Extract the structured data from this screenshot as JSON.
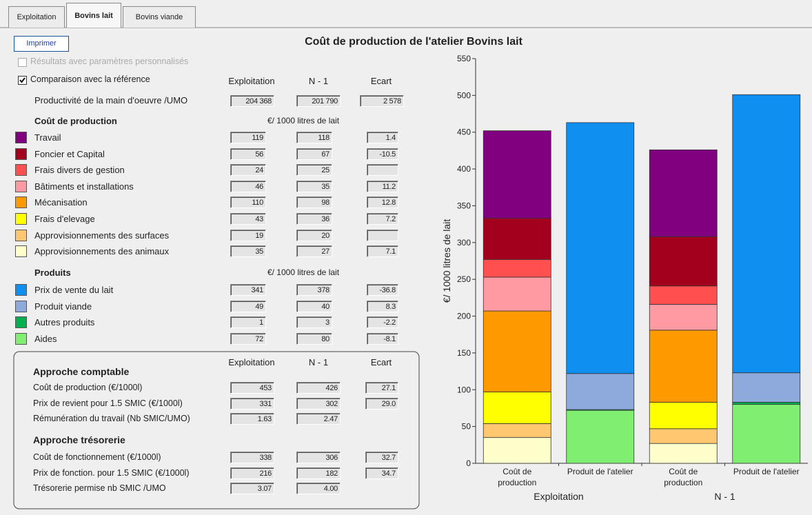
{
  "tabs": [
    "Exploitation",
    "Bovins lait",
    "Bovins viande"
  ],
  "print_button": "Imprimer",
  "options": [
    "Résultats avec paramètres personnalisés",
    "Comparaison avec la référence"
  ],
  "columns": [
    "Exploitation",
    "N - 1",
    "Ecart"
  ],
  "productivity": {
    "label": "Productivité de la main d'oeuvre /UMO",
    "values": [
      "204 368",
      "201 790",
      "2 578"
    ]
  },
  "cost": {
    "title": "Coût de production",
    "rows": [
      {
        "values": [
          "119",
          "118",
          "1.4"
        ]
      },
      {
        "values": [
          "56",
          "67",
          "-10.5"
        ]
      },
      {
        "values": [
          "24",
          "25",
          null
        ]
      },
      {
        "values": [
          "46",
          "35",
          "11.2"
        ]
      },
      {
        "values": [
          "110",
          "98",
          "12.8"
        ]
      },
      {
        "values": [
          "43",
          "36",
          "7.2"
        ]
      },
      {
        "values": [
          "19",
          "20",
          null
        ]
      },
      {
        "values": [
          "35",
          "27",
          "7.1"
        ]
      }
    ]
  },
  "products": {
    "title": "Produits",
    "rows": [
      {
        "values": [
          "341",
          "378",
          "-36.8"
        ]
      },
      {
        "values": [
          "49",
          "40",
          "8.3"
        ]
      },
      {
        "values": [
          "1",
          "3",
          "-2.2"
        ]
      },
      {
        "values": [
          "72",
          "80",
          "-8.1"
        ]
      }
    ]
  },
  "accounting": {
    "title": "Approche comptable",
    "rows": [
      {
        "label": "Coût de production (€/1000l)",
        "values": [
          "453",
          "426",
          "27.1"
        ]
      },
      {
        "label": "Prix de revient pour 1.5 SMIC (€/1000l)",
        "values": [
          "331",
          "302",
          "29.0"
        ]
      },
      {
        "label": "Rémunération du travail (Nb SMIC/UMO)",
        "values": [
          "1.63",
          "2.47"
        ]
      }
    ]
  },
  "treasury": {
    "title": "Approche trésorerie",
    "rows": [
      {
        "label": "Coût de fonctionnement (€/1000l)",
        "values": [
          "338",
          "306",
          "32.7"
        ]
      },
      {
        "label": "Prix de fonction. pour 1.5 SMIC (€/1000l)",
        "values": [
          "216",
          "182",
          "34.7"
        ]
      },
      {
        "label": "Trésorerie permise nb SMIC /UMO",
        "values": [
          "3.07",
          "4.00"
        ]
      }
    ]
  },
  "chart_data": {
    "type": "bar",
    "stacked": true,
    "title": "Coût de production de l'atelier Bovins lait",
    "ylabel": "€/ 1000 litres de lait",
    "categories": [
      "Coût de production",
      "Produit de l'atelier",
      "Coût de production",
      "Produit de l'atelier"
    ],
    "groups": [
      "Exploitation",
      "N - 1"
    ],
    "ylim": [
      0,
      550
    ],
    "yticks": [
      0,
      50,
      100,
      150,
      200,
      250,
      300,
      350,
      400,
      450,
      500,
      550
    ],
    "series": [
      {
        "name": "Travail",
        "color": "#800080",
        "values": [
          119,
          null,
          118,
          null
        ]
      },
      {
        "name": "Foncier et Capital",
        "color": "#a3001e",
        "values": [
          56,
          null,
          67,
          null
        ]
      },
      {
        "name": "Frais divers de gestion",
        "color": "#ff4f4f",
        "values": [
          24,
          null,
          25,
          null
        ]
      },
      {
        "name": "Bâtiments et installations",
        "color": "#ff9aa2",
        "values": [
          46,
          null,
          35,
          null
        ]
      },
      {
        "name": "Mécanisation",
        "color": "#ff9900",
        "values": [
          110,
          null,
          98,
          null
        ]
      },
      {
        "name": "Frais d'elevage",
        "color": "#ffff00",
        "values": [
          43,
          null,
          36,
          null
        ]
      },
      {
        "name": "Approvisionnements des surfaces",
        "color": "#ffc870",
        "values": [
          19,
          null,
          20,
          null
        ]
      },
      {
        "name": "Approvisionnements des animaux",
        "color": "#ffffcc",
        "values": [
          35,
          null,
          27,
          null
        ]
      },
      {
        "name": "Prix de vente du lait",
        "color": "#0f8ff0",
        "values": [
          null,
          341,
          null,
          378
        ]
      },
      {
        "name": "Produit viande",
        "color": "#8eaadc",
        "values": [
          null,
          49,
          null,
          40
        ]
      },
      {
        "name": "Autres produits",
        "color": "#00b050",
        "values": [
          null,
          1,
          null,
          3
        ]
      },
      {
        "name": "Aides",
        "color": "#80ee70",
        "values": [
          null,
          72,
          null,
          80
        ]
      }
    ]
  }
}
